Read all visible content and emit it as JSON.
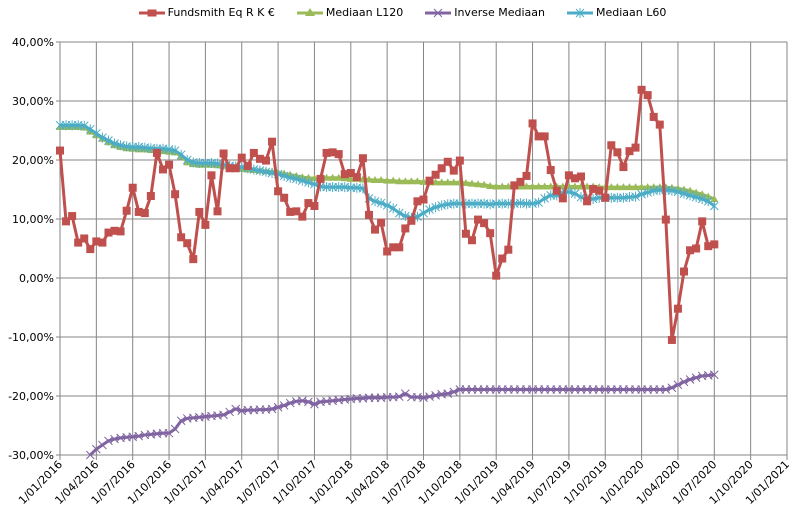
{
  "chart_data": {
    "type": "line",
    "title": "",
    "xlabel": "",
    "ylabel": "",
    "ylim": [
      -30,
      40
    ],
    "yticks": [
      "40,00%",
      "30,00%",
      "20,00%",
      "10,00%",
      "0,00%",
      "-10,00%",
      "-20,00%",
      "-30,00%"
    ],
    "ytick_values": [
      40,
      30,
      20,
      10,
      0,
      -10,
      -20,
      -30
    ],
    "xticks": [
      "1/01/2016",
      "1/04/2016",
      "1/07/2016",
      "1/10/2016",
      "1/01/2017",
      "1/04/2017",
      "1/07/2017",
      "1/10/2017",
      "1/01/2018",
      "1/04/2018",
      "1/07/2018",
      "1/10/2018",
      "1/01/2019",
      "1/04/2019",
      "1/07/2019",
      "1/10/2019",
      "1/01/2020",
      "1/04/2020",
      "1/07/2020",
      "1/10/2020",
      "1/01/2021"
    ],
    "x_start": "1/01/2016",
    "x_step": "half-month",
    "grid": true,
    "legend_position": "top",
    "series": [
      {
        "name": "Fundsmith Eq R K €",
        "color": "#C0504D",
        "marker": "square",
        "values": [
          21.6,
          9.6,
          10.5,
          6.0,
          6.7,
          4.9,
          6.2,
          6.0,
          7.7,
          8.0,
          7.9,
          11.4,
          15.3,
          11.2,
          11.0,
          13.9,
          21.2,
          18.4,
          19.2,
          14.2,
          6.9,
          5.9,
          3.2,
          11.2,
          9.0,
          17.4,
          11.3,
          21.1,
          18.6,
          18.6,
          20.4,
          19.0,
          21.2,
          20.2,
          19.9,
          23.1,
          14.7,
          13.6,
          11.2,
          11.3,
          10.4,
          12.7,
          12.2,
          16.8,
          21.2,
          21.3,
          21.0,
          17.6,
          17.8,
          17.1,
          20.3,
          10.7,
          8.2,
          9.4,
          4.5,
          5.2,
          5.2,
          8.4,
          9.7,
          13.0,
          13.3,
          16.5,
          17.5,
          18.6,
          19.7,
          18.2,
          19.9,
          7.5,
          6.4,
          9.9,
          9.3,
          7.6,
          0.4,
          3.3,
          4.8,
          15.7,
          16.3,
          17.3,
          26.2,
          24.0,
          24.0,
          18.3,
          14.8,
          13.5,
          17.4,
          16.9,
          17.2,
          13.0,
          15.1,
          14.8,
          13.6,
          22.5,
          21.3,
          18.8,
          21.5,
          22.1,
          31.9,
          31.0,
          27.3,
          26.0,
          9.9,
          -10.5,
          -5.2,
          1.1,
          4.7,
          5.0,
          9.6,
          5.4,
          5.7
        ]
      },
      {
        "name": "Mediaan L120",
        "color": "#9BBB59",
        "marker": "triangle",
        "values": [
          25.6,
          25.6,
          25.6,
          25.6,
          25.5,
          24.8,
          24.2,
          23.6,
          23.0,
          22.5,
          22.2,
          22.0,
          21.9,
          21.8,
          21.8,
          21.7,
          21.6,
          21.5,
          21.4,
          21.3,
          20.6,
          19.6,
          19.3,
          19.2,
          19.2,
          19.2,
          19.1,
          19.0,
          18.8,
          18.6,
          18.5,
          18.4,
          18.3,
          18.2,
          18.1,
          18.0,
          17.9,
          17.7,
          17.5,
          17.3,
          17.1,
          17.0,
          16.9,
          16.9,
          17.0,
          17.0,
          17.0,
          16.9,
          16.8,
          16.8,
          16.7,
          16.7,
          16.6,
          16.6,
          16.5,
          16.5,
          16.4,
          16.4,
          16.4,
          16.4,
          16.3,
          16.2,
          16.2,
          16.2,
          16.2,
          16.2,
          16.2,
          16.1,
          16.0,
          15.9,
          15.8,
          15.6,
          15.5,
          15.5,
          15.5,
          15.5,
          15.5,
          15.5,
          15.5,
          15.5,
          15.5,
          15.5,
          15.5,
          15.5,
          15.5,
          15.5,
          15.5,
          15.5,
          15.5,
          15.4,
          15.4,
          15.4,
          15.4,
          15.4,
          15.4,
          15.4,
          15.4,
          15.4,
          15.4,
          15.4,
          15.4,
          15.3,
          15.2,
          15.0,
          14.8,
          14.5,
          14.2,
          13.8,
          13.4
        ]
      },
      {
        "name": "Inverse Mediaan",
        "color": "#8064A2",
        "marker": "x",
        "values": [
          null,
          null,
          null,
          null,
          null,
          -30.0,
          -29.0,
          -28.3,
          -27.6,
          -27.3,
          -27.1,
          -27.0,
          -26.9,
          -26.8,
          -26.6,
          -26.5,
          -26.4,
          -26.3,
          -26.3,
          -25.6,
          -24.2,
          -23.8,
          -23.7,
          -23.6,
          -23.5,
          -23.4,
          -23.3,
          -23.2,
          -22.7,
          -22.2,
          -22.5,
          -22.4,
          -22.4,
          -22.3,
          -22.3,
          -22.2,
          -21.9,
          -21.6,
          -21.2,
          -20.9,
          -20.8,
          -21.0,
          -21.4,
          -21.0,
          -20.9,
          -20.8,
          -20.7,
          -20.6,
          -20.5,
          -20.4,
          -20.4,
          -20.3,
          -20.3,
          -20.3,
          -20.2,
          -20.2,
          -20.1,
          -19.6,
          -20.2,
          -20.2,
          -20.3,
          -20.1,
          -19.9,
          -19.7,
          -19.6,
          -19.3,
          -18.9,
          -18.9,
          -18.9,
          -18.9,
          -18.9,
          -18.9,
          -18.9,
          -18.9,
          -18.9,
          -18.9,
          -18.9,
          -18.9,
          -18.9,
          -18.9,
          -18.9,
          -18.9,
          -18.9,
          -18.9,
          -18.9,
          -18.9,
          -18.9,
          -18.9,
          -18.9,
          -18.9,
          -18.9,
          -18.9,
          -18.9,
          -18.9,
          -18.9,
          -18.9,
          -18.9,
          -18.9,
          -18.9,
          -18.9,
          -18.9,
          -18.6,
          -18.1,
          -17.6,
          -17.2,
          -16.9,
          -16.6,
          -16.5,
          -16.4
        ]
      },
      {
        "name": "Mediaan L60",
        "color": "#4BACC6",
        "marker": "star",
        "values": [
          25.9,
          25.9,
          25.9,
          25.9,
          25.8,
          25.2,
          24.5,
          23.8,
          23.3,
          22.8,
          22.5,
          22.3,
          22.2,
          22.2,
          22.1,
          22.0,
          21.9,
          21.9,
          21.8,
          21.6,
          20.9,
          20.0,
          19.6,
          19.5,
          19.5,
          19.5,
          19.4,
          19.2,
          19.0,
          18.9,
          18.8,
          18.6,
          18.4,
          18.2,
          18.0,
          17.8,
          17.6,
          17.3,
          17.0,
          16.8,
          16.5,
          16.2,
          15.9,
          15.5,
          15.4,
          15.4,
          15.4,
          15.4,
          15.3,
          15.3,
          15.2,
          13.5,
          13.0,
          12.7,
          12.3,
          11.8,
          11.0,
          10.5,
          10.2,
          10.4,
          11.0,
          11.6,
          12.0,
          12.3,
          12.5,
          12.6,
          12.6,
          12.6,
          12.6,
          12.6,
          12.6,
          12.5,
          12.6,
          12.6,
          12.6,
          12.6,
          12.7,
          12.6,
          12.6,
          12.8,
          13.5,
          14.0,
          14.0,
          14.4,
          14.6,
          14.3,
          13.7,
          13.4,
          13.4,
          13.6,
          13.6,
          13.6,
          13.6,
          13.6,
          13.7,
          13.8,
          14.2,
          14.5,
          14.8,
          14.9,
          14.9,
          14.8,
          14.6,
          14.3,
          14.0,
          13.7,
          13.4,
          13.0,
          12.2
        ]
      }
    ]
  }
}
